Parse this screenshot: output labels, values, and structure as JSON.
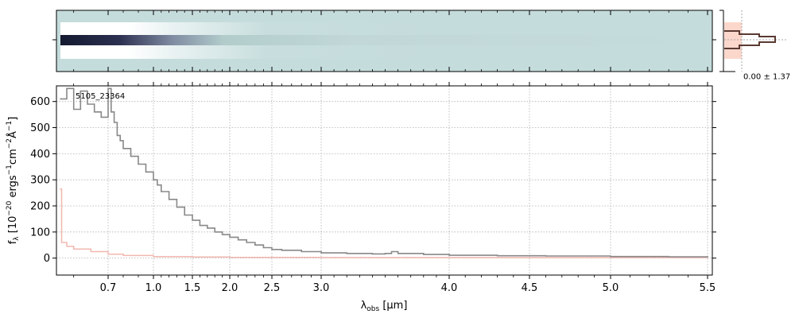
{
  "chart_data": {
    "type": "line",
    "object_label": "5105_23364",
    "xlabel": "λ_obs [μm]",
    "ylabel": "f_λ [10^-20 ergs^-1 cm^-2 Å^-1]",
    "x_scale": "non-linear (wavelength-stretched)",
    "xlim": [
      0.55,
      5.52
    ],
    "ylim": [
      -65,
      660
    ],
    "x_ticks": [
      0.7,
      1.0,
      1.5,
      2.0,
      2.5,
      3.0,
      4.0,
      4.5,
      5.0,
      5.5
    ],
    "x_tick_labels": [
      "0.7",
      "1.0",
      "1.5",
      "2.0",
      "2.5",
      "3.0",
      "4.0",
      "4.5",
      "5.0",
      "5.5"
    ],
    "y_ticks": [
      0,
      100,
      200,
      300,
      400,
      500,
      600
    ],
    "y_tick_labels": [
      "0",
      "100",
      "200",
      "300",
      "400",
      "500",
      "600"
    ],
    "grid": true,
    "colors": {
      "spectrum": "#888888",
      "error": "#f2b8b0",
      "profile_line": "#5a3a32",
      "profile_fill": "#fbd7cb",
      "image_bg": "#c5dcdc"
    },
    "series": [
      {
        "role": "spectrum",
        "x": [
          0.56,
          0.58,
          0.6,
          0.62,
          0.64,
          0.66,
          0.68,
          0.7,
          0.72,
          0.74,
          0.76,
          0.78,
          0.8,
          0.85,
          0.9,
          0.95,
          1.0,
          1.05,
          1.1,
          1.2,
          1.3,
          1.4,
          1.5,
          1.6,
          1.7,
          1.8,
          1.9,
          2.0,
          2.1,
          2.2,
          2.3,
          2.4,
          2.5,
          2.6,
          2.8,
          3.0,
          3.2,
          3.4,
          3.5,
          3.55,
          3.6,
          3.8,
          4.0,
          4.3,
          4.6,
          5.0,
          5.3,
          5.5
        ],
        "y": [
          610,
          650,
          570,
          640,
          590,
          560,
          540,
          650,
          560,
          520,
          470,
          450,
          420,
          390,
          360,
          330,
          300,
          280,
          255,
          225,
          195,
          165,
          145,
          125,
          115,
          100,
          90,
          80,
          70,
          60,
          50,
          40,
          33,
          30,
          25,
          20,
          18,
          16,
          18,
          25,
          18,
          14,
          11,
          9,
          8,
          6,
          5,
          8
        ]
      },
      {
        "role": "error",
        "x": [
          0.56,
          0.565,
          0.58,
          0.6,
          0.65,
          0.7,
          0.8,
          1.0,
          1.5,
          2.0,
          3.0,
          4.0,
          5.0,
          5.5
        ],
        "y": [
          265,
          60,
          45,
          35,
          25,
          15,
          10,
          6,
          4,
          3,
          2,
          2,
          2,
          2
        ]
      }
    ],
    "profile_panel": {
      "xlabel_text": "0.00 ± 1.37"
    }
  }
}
